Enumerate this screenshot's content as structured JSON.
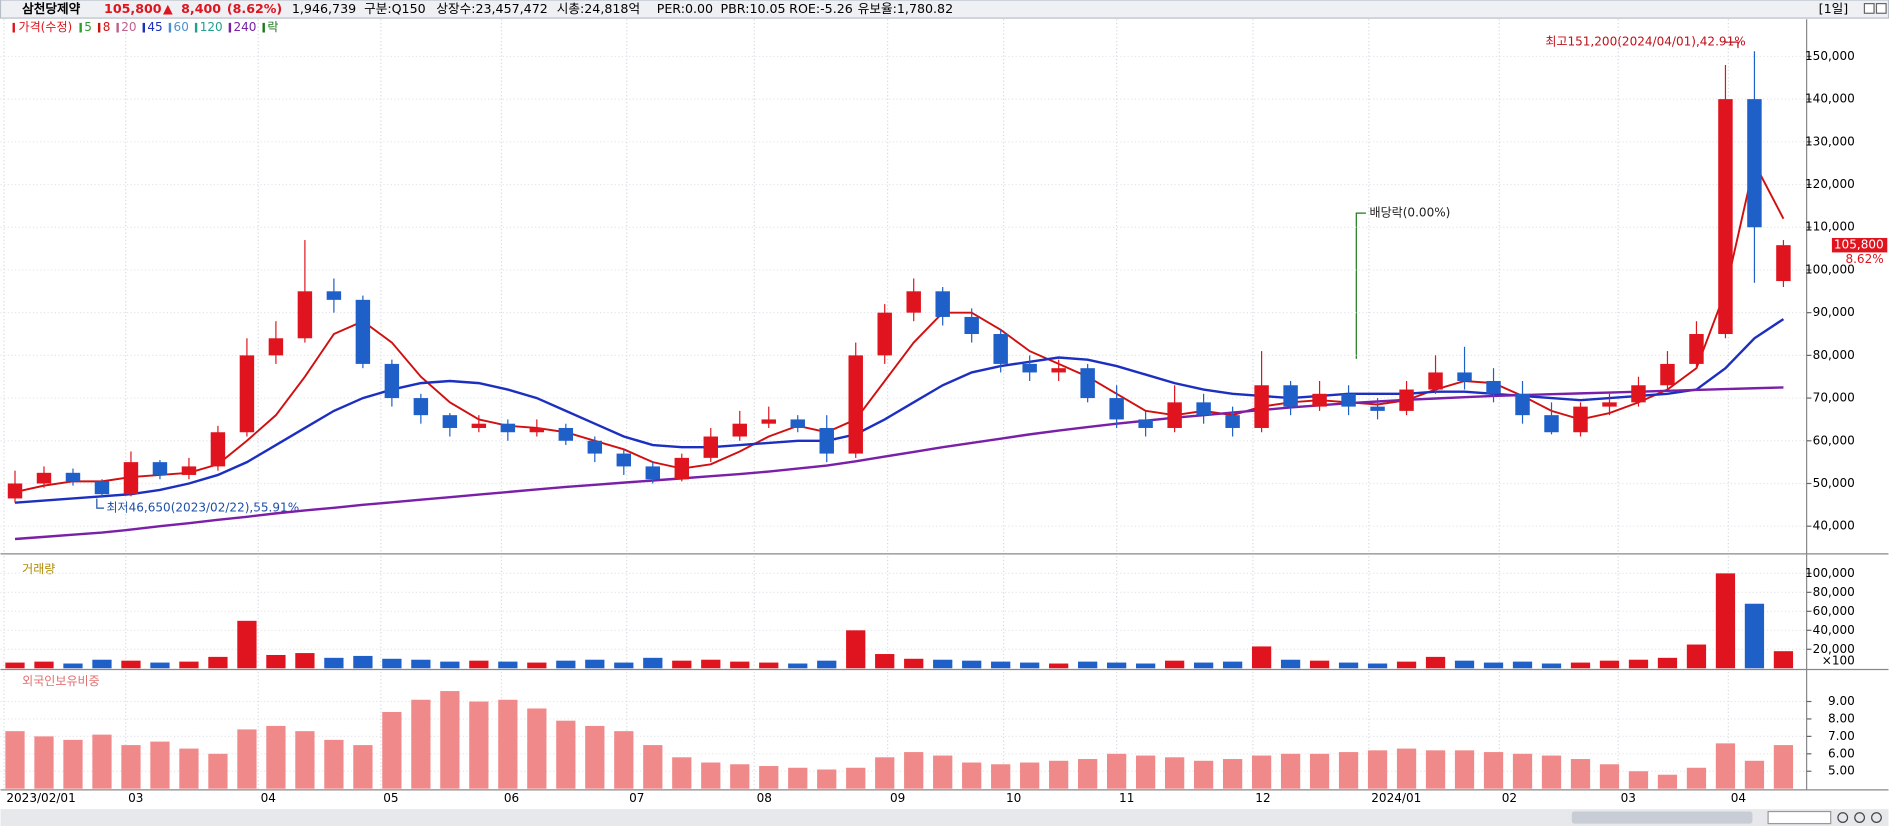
{
  "header": {
    "name": "삼천당제약",
    "price": "105,800",
    "arrow": "▲",
    "change": "8,400",
    "change_pct": "(8.62%)",
    "volume": "1,946,739",
    "division": "구분:Q150",
    "shares": "상장수:23,457,472",
    "market_cap": "시총:24,818억",
    "per": "PER:0.00",
    "pbr": "PBR:10.05",
    "roe": "ROE:-5.26",
    "reserve": "유보율:1,780.82",
    "period": "[1일]"
  },
  "chart_data": [
    {
      "type": "candlestick",
      "legend_price": "가격(수정)",
      "legend_ex": "락",
      "up_color": "#e0141e",
      "down_color": "#1f5fc8",
      "xlim": [
        -0.5,
        61.8
      ],
      "ylim": [
        33800,
        158700
      ],
      "yticks": [
        {
          "value": 40000,
          "label": "40,000"
        },
        {
          "value": 50000,
          "label": "50,000"
        },
        {
          "value": 60000,
          "label": "60,000"
        },
        {
          "value": 70000,
          "label": "70,000"
        },
        {
          "value": 80000,
          "label": "80,000"
        },
        {
          "value": 90000,
          "label": "90,000"
        },
        {
          "value": 100000,
          "label": "100,000"
        },
        {
          "value": 110000,
          "label": "110,000"
        },
        {
          "value": 120000,
          "label": "120,000"
        },
        {
          "value": 130000,
          "label": "130,000"
        },
        {
          "value": 140000,
          "label": "140,000"
        },
        {
          "value": 150000,
          "label": "150,000"
        }
      ],
      "open": [
        46500,
        50000,
        52500,
        50500,
        47500,
        55000,
        52000,
        54000,
        62000,
        80000,
        84000,
        95000,
        93000,
        78000,
        70000,
        66000,
        63000,
        64000,
        62000,
        63000,
        60000,
        57000,
        54000,
        51000,
        56000,
        61000,
        64000,
        65000,
        63000,
        57000,
        80000,
        90000,
        95000,
        89000,
        85000,
        78000,
        76000,
        77000,
        70000,
        65000,
        63000,
        69000,
        66000,
        63000,
        73000,
        68000,
        71000,
        68000,
        67000,
        72000,
        76000,
        74000,
        71000,
        66000,
        62000,
        68000,
        69000,
        73000,
        78000,
        85000,
        140000,
        97400
      ],
      "high": [
        53000,
        54000,
        53500,
        51000,
        57500,
        55500,
        56000,
        63500,
        84000,
        88000,
        107000,
        98000,
        94000,
        79000,
        71000,
        66500,
        66000,
        65000,
        65000,
        64000,
        61000,
        58000,
        55000,
        57000,
        63000,
        67000,
        68000,
        66000,
        66000,
        83000,
        92000,
        98000,
        96000,
        91000,
        86000,
        80000,
        79000,
        78000,
        73000,
        67000,
        73000,
        71000,
        68000,
        81000,
        74000,
        74000,
        73000,
        70000,
        74000,
        80000,
        82000,
        77000,
        74000,
        69000,
        69000,
        71000,
        75000,
        81000,
        88000,
        148000,
        151200,
        107000
      ],
      "low": [
        45500,
        49000,
        49500,
        46650,
        47000,
        51000,
        51000,
        53000,
        61000,
        78000,
        83000,
        90000,
        77000,
        68000,
        64000,
        61000,
        62000,
        60000,
        61000,
        59000,
        55000,
        52000,
        50000,
        50500,
        55000,
        60000,
        63000,
        62000,
        55000,
        56000,
        78000,
        88000,
        87000,
        83000,
        76000,
        74000,
        74000,
        69000,
        63000,
        61000,
        62000,
        64000,
        61000,
        62000,
        66000,
        67000,
        66000,
        65000,
        66000,
        71000,
        72000,
        69000,
        64000,
        61500,
        61000,
        66000,
        68000,
        72000,
        77000,
        84000,
        97000,
        96000
      ],
      "close": [
        50000,
        52500,
        50500,
        47500,
        55000,
        52000,
        54000,
        62000,
        80000,
        84000,
        95000,
        93000,
        78000,
        70000,
        66000,
        63000,
        64000,
        62000,
        63000,
        60000,
        57000,
        54000,
        51000,
        56000,
        61000,
        64000,
        65000,
        63000,
        57000,
        80000,
        90000,
        95000,
        89000,
        85000,
        78000,
        76000,
        77000,
        70000,
        65000,
        63000,
        69000,
        66000,
        63000,
        73000,
        68000,
        71000,
        68000,
        67000,
        72000,
        76000,
        74000,
        71000,
        66000,
        62000,
        68000,
        69000,
        73000,
        78000,
        85000,
        140000,
        110000,
        105800
      ],
      "series": [
        {
          "name": "5",
          "color": "#2ca02c"
        },
        {
          "name": "8",
          "color": "#d01010",
          "values": [
            48000,
            49500,
            50500,
            50500,
            51500,
            52000,
            52500,
            54500,
            60000,
            66000,
            75000,
            85000,
            88000,
            83000,
            75000,
            69000,
            65000,
            63500,
            63000,
            62000,
            60000,
            58000,
            55000,
            53500,
            54500,
            57500,
            61000,
            63500,
            62000,
            65000,
            74000,
            83000,
            90000,
            90000,
            86000,
            81000,
            78000,
            75000,
            71000,
            67000,
            66000,
            67000,
            66000,
            68000,
            69000,
            69500,
            69000,
            68500,
            69500,
            72000,
            74000,
            73500,
            70500,
            67000,
            65000,
            66500,
            69000,
            72000,
            77000,
            95000,
            125000,
            112000
          ]
        },
        {
          "name": "20",
          "color": "#c0608a"
        },
        {
          "name": "45",
          "color": "#1c2fc0",
          "values": [
            45500,
            46000,
            46500,
            47000,
            47500,
            48500,
            50000,
            52000,
            55000,
            59000,
            63000,
            67000,
            70000,
            72000,
            73500,
            74000,
            73500,
            72000,
            70000,
            67000,
            64000,
            61000,
            59000,
            58500,
            58500,
            59000,
            59500,
            60000,
            60000,
            61500,
            65000,
            69000,
            73000,
            76000,
            77500,
            78500,
            79500,
            79000,
            77500,
            75500,
            73500,
            72000,
            71000,
            70500,
            70000,
            70500,
            71000,
            71000,
            71000,
            71500,
            71500,
            71000,
            70500,
            70000,
            69500,
            70000,
            70500,
            71000,
            72000,
            77000,
            84000,
            88500
          ]
        },
        {
          "name": "60",
          "color": "#4a90d0"
        },
        {
          "name": "120",
          "color": "#20a090"
        },
        {
          "name": "240",
          "color": "#7a1fa8",
          "values": [
            37000,
            37500,
            38000,
            38500,
            39200,
            40000,
            40700,
            41500,
            42200,
            43000,
            43700,
            44300,
            45000,
            45600,
            46200,
            46800,
            47400,
            48000,
            48600,
            49200,
            49700,
            50200,
            50700,
            51200,
            51700,
            52200,
            52800,
            53500,
            54200,
            55200,
            56300,
            57400,
            58500,
            59500,
            60500,
            61500,
            62400,
            63200,
            64000,
            64700,
            65400,
            66000,
            66600,
            67200,
            67800,
            68300,
            68800,
            69200,
            69600,
            69900,
            70200,
            70500,
            70700,
            70900,
            71100,
            71300,
            71500,
            71700,
            71900,
            72100,
            72300,
            72500
          ]
        }
      ],
      "annotations": {
        "high": "최고151,200(2024/04/01),42.91%",
        "low": "최저46,650(2023/02/22),55.91%",
        "dividend": "배당락(0.00%)",
        "marker_pct": "8.62%"
      }
    },
    {
      "type": "bar",
      "title": "거래량",
      "unit": "×100",
      "ylim": [
        0,
        118000
      ],
      "yticks": [
        {
          "value": 20000,
          "label": "20,000"
        },
        {
          "value": 40000,
          "label": "40,000"
        },
        {
          "value": 60000,
          "label": "60,000"
        },
        {
          "value": 80000,
          "label": "80,000"
        },
        {
          "value": 100000,
          "label": "100,000"
        }
      ],
      "values": [
        6000,
        7000,
        5000,
        9000,
        8000,
        6000,
        7000,
        12000,
        50000,
        14000,
        16000,
        11000,
        13000,
        10000,
        9000,
        7000,
        8000,
        7000,
        6000,
        8000,
        9000,
        6000,
        11000,
        8000,
        9000,
        7000,
        6000,
        5000,
        8000,
        40000,
        15000,
        10000,
        9000,
        8000,
        7000,
        6000,
        5000,
        7000,
        6000,
        5000,
        8000,
        6000,
        7000,
        23000,
        9000,
        8000,
        6000,
        5000,
        7000,
        12000,
        8000,
        6000,
        7000,
        5000,
        6000,
        8000,
        9000,
        11000,
        25000,
        100000,
        68000,
        18000
      ]
    },
    {
      "type": "bar",
      "title": "외국인보유비중",
      "color": "#f08a8a",
      "ylim": [
        4,
        10.7
      ],
      "yticks": [
        {
          "value": 5,
          "label": "5.00"
        },
        {
          "value": 6,
          "label": "6.00"
        },
        {
          "value": 7,
          "label": "7.00"
        },
        {
          "value": 8,
          "label": "8.00"
        },
        {
          "value": 9,
          "label": "9.00"
        }
      ],
      "values": [
        7.3,
        7.0,
        6.8,
        7.1,
        6.5,
        6.7,
        6.3,
        6.0,
        7.4,
        7.6,
        7.3,
        6.8,
        6.5,
        8.4,
        9.1,
        9.6,
        9.0,
        9.1,
        8.6,
        7.9,
        7.6,
        7.3,
        6.5,
        5.8,
        5.5,
        5.4,
        5.3,
        5.2,
        5.1,
        5.2,
        5.8,
        6.1,
        5.9,
        5.5,
        5.4,
        5.5,
        5.6,
        5.7,
        6.0,
        5.9,
        5.8,
        5.6,
        5.7,
        5.9,
        6.0,
        6.0,
        6.1,
        6.2,
        6.3,
        6.2,
        6.2,
        6.1,
        6.0,
        5.9,
        5.7,
        5.4,
        5.0,
        4.8,
        5.2,
        6.6,
        5.6,
        6.5
      ],
      "xticks": [
        {
          "value": -0.38,
          "label": "2023/02/01"
        },
        {
          "value": 3.82,
          "label": "03"
        },
        {
          "value": 8.39,
          "label": "04"
        },
        {
          "value": 12.62,
          "label": "05"
        },
        {
          "value": 16.78,
          "label": "06"
        },
        {
          "value": 21.1,
          "label": "07"
        },
        {
          "value": 25.5,
          "label": "08"
        },
        {
          "value": 30.1,
          "label": "09"
        },
        {
          "value": 34.1,
          "label": "10"
        },
        {
          "value": 38.0,
          "label": "11"
        },
        {
          "value": 42.7,
          "label": "12"
        },
        {
          "value": 46.7,
          "label": "2024/01"
        },
        {
          "value": 51.2,
          "label": "02"
        },
        {
          "value": 55.3,
          "label": "03"
        },
        {
          "value": 59.1,
          "label": "04"
        }
      ]
    }
  ]
}
